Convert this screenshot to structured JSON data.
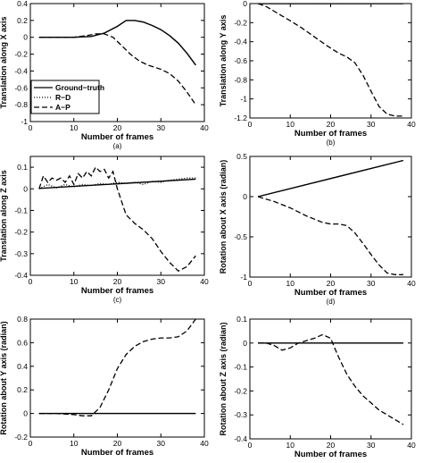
{
  "legend": {
    "entries": [
      {
        "label": "Ground−truth",
        "series": 0
      },
      {
        "label": "R−D",
        "series": 1
      },
      {
        "label": "A−P",
        "series": 2
      }
    ]
  },
  "chart_data": [
    {
      "type": "line",
      "caption": "(a)",
      "xlabel": "Number of frames",
      "ylabel": "Translation along X axis",
      "xlim": [
        0,
        40
      ],
      "ylim": [
        -1,
        0.4
      ],
      "xticks": [
        0,
        10,
        20,
        30,
        40
      ],
      "yticks": [
        -1,
        -0.8,
        -0.6,
        -0.4,
        -0.2,
        0,
        0.2,
        0.4
      ],
      "ytick_labels": [
        "-1",
        "-0.8",
        "-0.6",
        "-0.4",
        "-0.2",
        "0",
        "0.2",
        "0.4"
      ],
      "series": [
        {
          "style": "solid",
          "x": [
            2,
            6,
            10,
            14,
            17,
            20,
            22,
            24,
            26,
            28,
            30,
            32,
            34,
            36,
            38
          ],
          "y": [
            0,
            0,
            0,
            0.01,
            0.05,
            0.13,
            0.2,
            0.2,
            0.18,
            0.14,
            0.09,
            0.02,
            -0.07,
            -0.19,
            -0.33
          ]
        },
        {
          "style": "dotted",
          "x": [
            2,
            6,
            10,
            14,
            17,
            20,
            22,
            24,
            26,
            28,
            30,
            32,
            34,
            36,
            38
          ],
          "y": [
            0,
            0,
            0,
            0.01,
            0.05,
            0.13,
            0.2,
            0.2,
            0.18,
            0.14,
            0.09,
            0.02,
            -0.07,
            -0.19,
            -0.33
          ]
        },
        {
          "style": "dashed",
          "x": [
            2,
            6,
            10,
            13,
            15,
            17,
            19,
            21,
            23,
            25,
            27,
            30,
            32,
            34,
            36,
            38
          ],
          "y": [
            0,
            0,
            0,
            0.02,
            0.04,
            0.04,
            0.0,
            -0.1,
            -0.2,
            -0.28,
            -0.33,
            -0.38,
            -0.43,
            -0.52,
            -0.65,
            -0.8
          ]
        }
      ]
    },
    {
      "type": "line",
      "caption": "(b)",
      "xlabel": "Number of frames",
      "ylabel": "Translation along Y axis",
      "xlim": [
        0,
        40
      ],
      "ylim": [
        -1.2,
        0
      ],
      "xticks": [
        0,
        10,
        20,
        30,
        40
      ],
      "yticks": [
        -1.2,
        -1,
        -0.8,
        -0.6,
        -0.4,
        -0.2,
        0
      ],
      "ytick_labels": [
        "-1.2",
        "-1",
        "-0.8",
        "-0.6",
        "-0.4",
        "-0.2",
        "0"
      ],
      "series": [
        {
          "style": "solid",
          "x": [
            2,
            38
          ],
          "y": [
            0,
            0
          ]
        },
        {
          "style": "dotted",
          "x": [
            2,
            38
          ],
          "y": [
            0,
            0
          ]
        },
        {
          "style": "dashed",
          "x": [
            2,
            4,
            6,
            8,
            10,
            13,
            16,
            19,
            22,
            24,
            26,
            28,
            30,
            32,
            34,
            36,
            38
          ],
          "y": [
            0,
            -0.03,
            -0.08,
            -0.13,
            -0.18,
            -0.26,
            -0.35,
            -0.44,
            -0.52,
            -0.56,
            -0.62,
            -0.75,
            -0.92,
            -1.08,
            -1.16,
            -1.18,
            -1.18
          ]
        }
      ]
    },
    {
      "type": "line",
      "caption": "(c)",
      "xlabel": "Number of frames",
      "ylabel": "Translation along Z axis",
      "xlim": [
        0,
        40
      ],
      "ylim": [
        -0.4,
        0.15
      ],
      "xticks": [
        0,
        10,
        20,
        30,
        40
      ],
      "yticks": [
        -0.4,
        -0.3,
        -0.2,
        -0.1,
        0,
        0.1
      ],
      "ytick_labels": [
        "-0.4",
        "-0.3",
        "-0.2",
        "-0.1",
        "0",
        "0.1"
      ],
      "series": [
        {
          "style": "solid",
          "x": [
            2,
            38
          ],
          "y": [
            0.002,
            0.045
          ]
        },
        {
          "style": "dotted",
          "x": [
            2,
            4,
            6,
            8,
            10,
            12,
            14,
            16,
            18,
            20,
            22,
            24,
            26,
            28,
            30,
            32,
            34,
            36,
            38
          ],
          "y": [
            0.0,
            0.02,
            0.005,
            0.02,
            0.01,
            0.02,
            0.015,
            0.025,
            0.02,
            0.03,
            0.025,
            0.03,
            0.02,
            0.035,
            0.03,
            0.04,
            0.045,
            0.05,
            0.05
          ]
        },
        {
          "style": "dashed",
          "x": [
            2,
            3,
            4,
            5,
            6,
            7,
            8,
            9,
            10,
            11,
            12,
            13,
            14,
            15,
            16,
            17,
            18,
            19,
            20,
            22,
            24,
            26,
            28,
            30,
            32,
            34,
            36,
            38
          ],
          "y": [
            0.0,
            0.06,
            0.03,
            0.05,
            0.04,
            0.05,
            0.03,
            0.06,
            0.02,
            0.07,
            0.05,
            0.08,
            0.06,
            0.1,
            0.08,
            0.09,
            0.05,
            0.08,
            0.0,
            -0.12,
            -0.16,
            -0.19,
            -0.23,
            -0.29,
            -0.34,
            -0.38,
            -0.36,
            -0.31
          ]
        }
      ]
    },
    {
      "type": "line",
      "caption": "(d)",
      "xlabel": "Number of frames",
      "ylabel": "Rotation about X axis (radian)",
      "xlim": [
        0,
        40
      ],
      "ylim": [
        -1,
        0.5
      ],
      "xticks": [
        0,
        10,
        20,
        30,
        40
      ],
      "yticks": [
        -1,
        -0.5,
        0,
        0.5
      ],
      "ytick_labels": [
        "-1",
        "-0.5",
        "0",
        "0.5"
      ],
      "series": [
        {
          "style": "solid",
          "x": [
            2,
            38
          ],
          "y": [
            0,
            0.45
          ]
        },
        {
          "style": "dotted",
          "x": [
            2,
            38
          ],
          "y": [
            0,
            0.45
          ]
        },
        {
          "style": "dashed",
          "x": [
            2,
            4,
            6,
            8,
            10,
            12,
            14,
            16,
            18,
            20,
            22,
            24,
            26,
            28,
            30,
            32,
            34,
            36,
            38
          ],
          "y": [
            0,
            -0.03,
            -0.06,
            -0.1,
            -0.14,
            -0.19,
            -0.24,
            -0.28,
            -0.32,
            -0.34,
            -0.34,
            -0.36,
            -0.45,
            -0.58,
            -0.72,
            -0.85,
            -0.95,
            -0.97,
            -0.97
          ]
        }
      ]
    },
    {
      "type": "line",
      "caption": "(e)",
      "xlabel": "Number of frames",
      "ylabel": "Rotation about Y axis (radian)",
      "xlim": [
        0,
        40
      ],
      "ylim": [
        -0.2,
        0.8
      ],
      "xticks": [
        0,
        10,
        20,
        30,
        40
      ],
      "yticks": [
        -0.2,
        0,
        0.2,
        0.4,
        0.6,
        0.8
      ],
      "ytick_labels": [
        "-0.2",
        "0",
        "0.2",
        "0.4",
        "0.6",
        "0.8"
      ],
      "series": [
        {
          "style": "solid",
          "x": [
            2,
            38
          ],
          "y": [
            0,
            0
          ]
        },
        {
          "style": "dotted",
          "x": [
            2,
            38
          ],
          "y": [
            0,
            0
          ]
        },
        {
          "style": "dashed",
          "x": [
            2,
            6,
            10,
            12,
            14,
            16,
            18,
            20,
            22,
            24,
            26,
            28,
            30,
            32,
            34,
            36,
            38
          ],
          "y": [
            0,
            0,
            -0.01,
            -0.02,
            -0.02,
            0.05,
            0.2,
            0.38,
            0.5,
            0.57,
            0.61,
            0.63,
            0.64,
            0.64,
            0.65,
            0.7,
            0.8
          ]
        }
      ]
    },
    {
      "type": "line",
      "caption": "(f)",
      "xlabel": "Number of frames",
      "ylabel": "Rotation about Z axis (radian)",
      "xlim": [
        0,
        40
      ],
      "ylim": [
        -0.4,
        0.1
      ],
      "xticks": [
        0,
        10,
        20,
        30,
        40
      ],
      "yticks": [
        -0.4,
        -0.3,
        -0.2,
        -0.1,
        0,
        0.1
      ],
      "ytick_labels": [
        "-0.4",
        "-0.3",
        "-0.2",
        "-0.1",
        "0",
        "0.1"
      ],
      "series": [
        {
          "style": "solid",
          "x": [
            2,
            38
          ],
          "y": [
            0,
            0
          ]
        },
        {
          "style": "dotted",
          "x": [
            2,
            38
          ],
          "y": [
            0,
            0
          ]
        },
        {
          "style": "dashed",
          "x": [
            2,
            4,
            6,
            8,
            10,
            12,
            14,
            16,
            18,
            20,
            21,
            22,
            24,
            26,
            28,
            30,
            32,
            34,
            36,
            38
          ],
          "y": [
            0,
            0,
            -0.01,
            -0.03,
            -0.02,
            0,
            0.01,
            0.02,
            0.035,
            0.02,
            -0.02,
            -0.06,
            -0.13,
            -0.18,
            -0.22,
            -0.25,
            -0.28,
            -0.3,
            -0.32,
            -0.34
          ]
        }
      ]
    }
  ]
}
